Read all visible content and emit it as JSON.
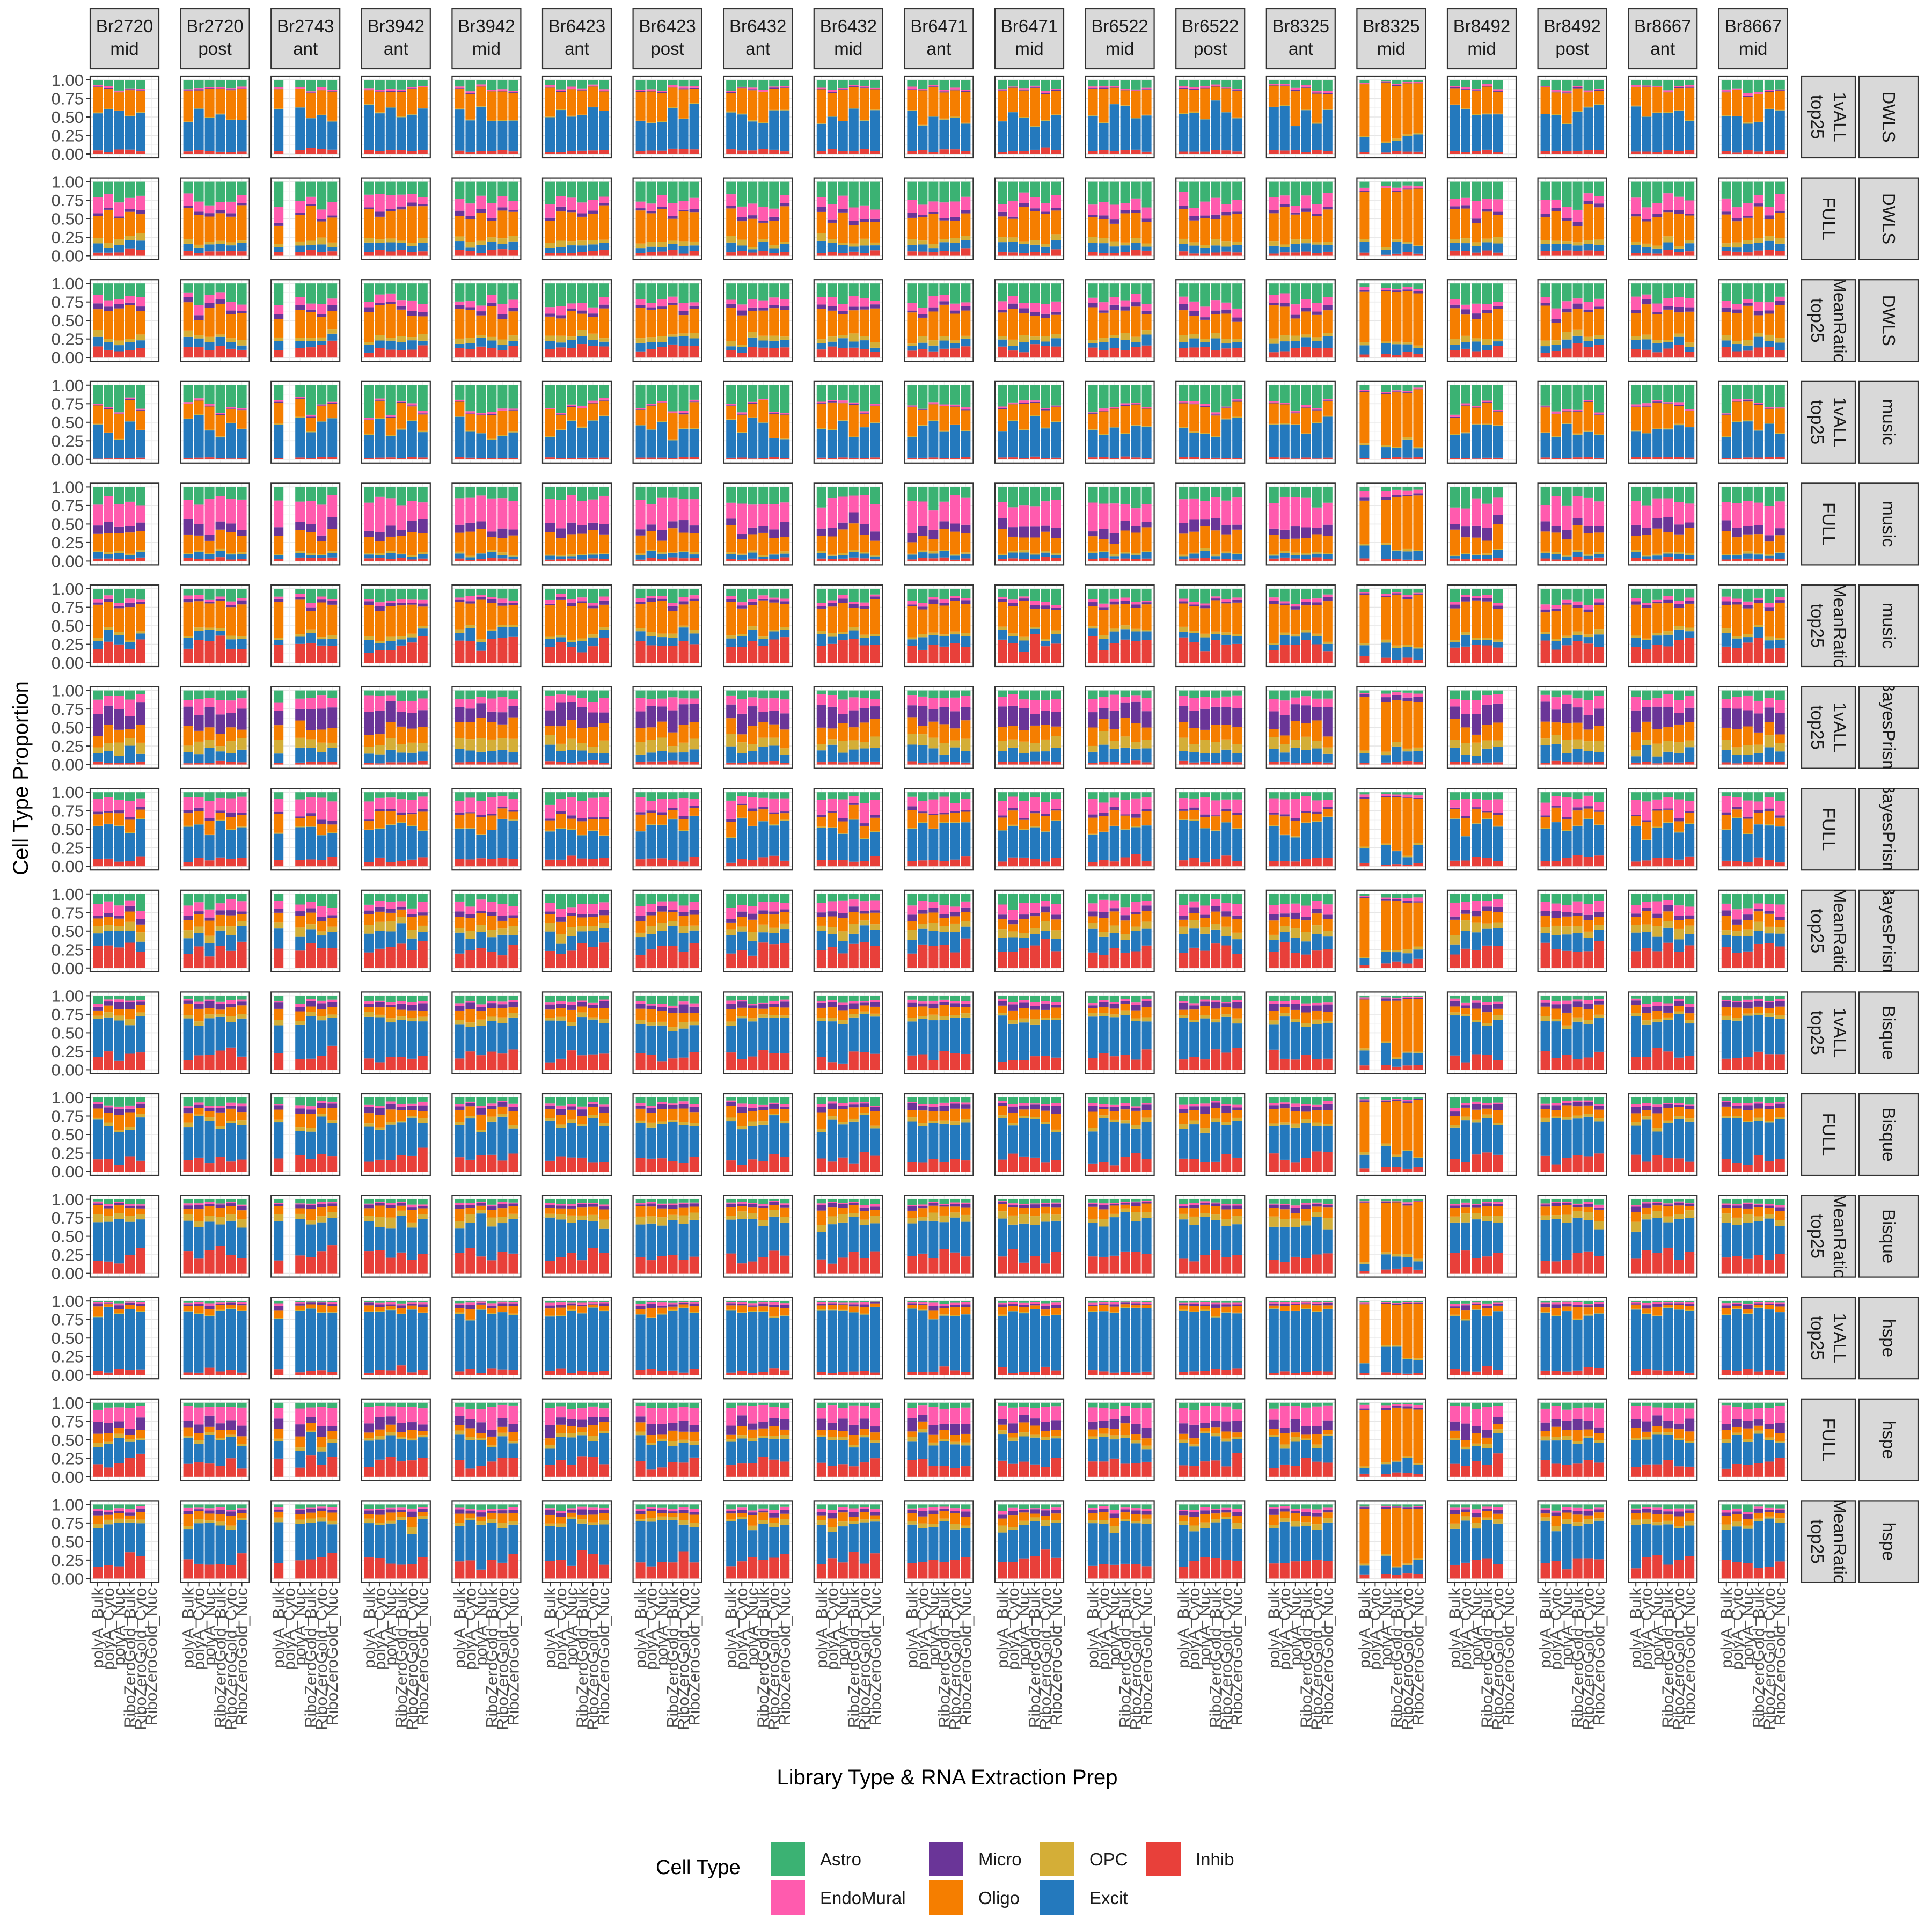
{
  "chart_data": {
    "type": "bar",
    "subtype": "stacked-bar-facet-grid",
    "title": "",
    "xlabel": "Library Type & RNA Extraction Prep",
    "ylabel": "Cell Type Proportion",
    "ylim": [
      0,
      1
    ],
    "y_ticks": [
      "0.00",
      "0.25",
      "0.50",
      "0.75",
      "1.00"
    ],
    "grid": true,
    "legend_placement": "bottom",
    "legend_title": "Cell Type",
    "cell_types": [
      "Astro",
      "EndoMural",
      "Micro",
      "Oligo",
      "OPC",
      "Excit",
      "Inhib"
    ],
    "stack_order_bottom_to_top": [
      "Inhib",
      "Excit",
      "OPC",
      "Oligo",
      "Micro",
      "EndoMural",
      "Astro"
    ],
    "colors": {
      "Astro": "#3BB273",
      "EndoMural": "#FF5BAE",
      "Micro": "#6A3598",
      "Oligo": "#F57E00",
      "OPC": "#D4AE37",
      "Excit": "#2479BD",
      "Inhib": "#E8403A"
    },
    "x_categories": [
      "polyA_Bulk",
      "polyA_Cyto",
      "polyA_Nuc",
      "RiboZeroGold_Bulk",
      "RiboZeroGold_Cyto",
      "RiboZeroGold_Nuc"
    ],
    "column_facets": [
      {
        "donor": "Br2720",
        "position": "mid"
      },
      {
        "donor": "Br2720",
        "position": "post"
      },
      {
        "donor": "Br2743",
        "position": "ant"
      },
      {
        "donor": "Br3942",
        "position": "ant"
      },
      {
        "donor": "Br3942",
        "position": "mid"
      },
      {
        "donor": "Br6423",
        "position": "ant"
      },
      {
        "donor": "Br6423",
        "position": "post"
      },
      {
        "donor": "Br6432",
        "position": "ant"
      },
      {
        "donor": "Br6432",
        "position": "mid"
      },
      {
        "donor": "Br6471",
        "position": "ant"
      },
      {
        "donor": "Br6471",
        "position": "mid"
      },
      {
        "donor": "Br6522",
        "position": "mid"
      },
      {
        "donor": "Br6522",
        "position": "post"
      },
      {
        "donor": "Br8325",
        "position": "ant"
      },
      {
        "donor": "Br8325",
        "position": "mid"
      },
      {
        "donor": "Br8492",
        "position": "mid"
      },
      {
        "donor": "Br8492",
        "position": "post"
      },
      {
        "donor": "Br8667",
        "position": "ant"
      },
      {
        "donor": "Br8667",
        "position": "mid"
      }
    ],
    "row_facets": [
      {
        "marker": [
          "1vALL",
          "top25"
        ],
        "method": "DWLS"
      },
      {
        "marker": [
          "FULL"
        ],
        "method": "DWLS"
      },
      {
        "marker": [
          "MeanRatio",
          "top25"
        ],
        "method": "DWLS"
      },
      {
        "marker": [
          "1vALL",
          "top25"
        ],
        "method": "music"
      },
      {
        "marker": [
          "FULL"
        ],
        "method": "music"
      },
      {
        "marker": [
          "MeanRatio",
          "top25"
        ],
        "method": "music"
      },
      {
        "marker": [
          "1vALL",
          "top25"
        ],
        "method": "BayesPrism"
      },
      {
        "marker": [
          "FULL"
        ],
        "method": "BayesPrism"
      },
      {
        "marker": [
          "MeanRatio",
          "top25"
        ],
        "method": "BayesPrism"
      },
      {
        "marker": [
          "1vALL",
          "top25"
        ],
        "method": "Bisque"
      },
      {
        "marker": [
          "FULL"
        ],
        "method": "Bisque"
      },
      {
        "marker": [
          "MeanRatio",
          "top25"
        ],
        "method": "Bisque"
      },
      {
        "marker": [
          "1vALL",
          "top25"
        ],
        "method": "hspe"
      },
      {
        "marker": [
          "FULL"
        ],
        "method": "hspe"
      },
      {
        "marker": [
          "MeanRatio",
          "top25"
        ],
        "method": "hspe"
      }
    ],
    "missing_samples": [
      {
        "column": "Br2720 mid",
        "categories": [
          "RiboZeroGold_Nuc"
        ]
      },
      {
        "column": "Br2743 ant",
        "categories": [
          "polyA_Cyto"
        ]
      },
      {
        "column": "Br8325 mid",
        "categories": [
          "polyA_Cyto"
        ]
      },
      {
        "column": "Br8492 mid",
        "categories": [
          "RiboZeroGold_Nuc"
        ]
      }
    ],
    "method_base_profiles": {
      "DWLS|1vALL": [
        0.1,
        0.02,
        0.01,
        0.32,
        0.01,
        0.5,
        0.04
      ],
      "DWLS|FULL": [
        0.25,
        0.15,
        0.04,
        0.36,
        0.06,
        0.09,
        0.05
      ],
      "DWLS|MeanRatio": [
        0.22,
        0.1,
        0.05,
        0.36,
        0.06,
        0.1,
        0.11
      ],
      "music|1vALL": [
        0.28,
        0.02,
        0.01,
        0.25,
        0.01,
        0.41,
        0.02
      ],
      "music|FULL": [
        0.2,
        0.32,
        0.12,
        0.25,
        0.02,
        0.06,
        0.03
      ],
      "music|MeanRatio": [
        0.14,
        0.04,
        0.04,
        0.4,
        0.04,
        0.12,
        0.22
      ],
      "BayesPrism|1vALL": [
        0.1,
        0.15,
        0.23,
        0.2,
        0.13,
        0.16,
        0.03
      ],
      "BayesPrism|FULL": [
        0.09,
        0.18,
        0.03,
        0.16,
        0.01,
        0.45,
        0.08
      ],
      "BayesPrism|MeanRatio": [
        0.14,
        0.12,
        0.06,
        0.14,
        0.1,
        0.2,
        0.24
      ],
      "Bisque|1vALL": [
        0.08,
        0.03,
        0.07,
        0.12,
        0.05,
        0.47,
        0.18
      ],
      "Bisque|FULL": [
        0.08,
        0.03,
        0.06,
        0.14,
        0.04,
        0.49,
        0.16
      ],
      "Bisque|MeanRatio": [
        0.05,
        0.02,
        0.04,
        0.11,
        0.09,
        0.47,
        0.22
      ],
      "hspe|1vALL": [
        0.02,
        0.02,
        0.03,
        0.07,
        0.01,
        0.8,
        0.05
      ],
      "hspe|FULL": [
        0.06,
        0.2,
        0.12,
        0.1,
        0.04,
        0.3,
        0.18
      ],
      "hspe|MeanRatio": [
        0.05,
        0.03,
        0.05,
        0.09,
        0.05,
        0.52,
        0.21
      ]
    },
    "outlier_column_profile": {
      "column": "Br8325 mid",
      "description_profile": [
        0.02,
        0.01,
        0.01,
        0.8,
        0.02,
        0.12,
        0.02
      ]
    },
    "legend_layout": {
      "columns": [
        [
          "Astro",
          "EndoMural"
        ],
        [
          "Micro",
          "Oligo"
        ],
        [
          "OPC",
          "Excit"
        ],
        [
          "Inhib"
        ]
      ]
    }
  }
}
